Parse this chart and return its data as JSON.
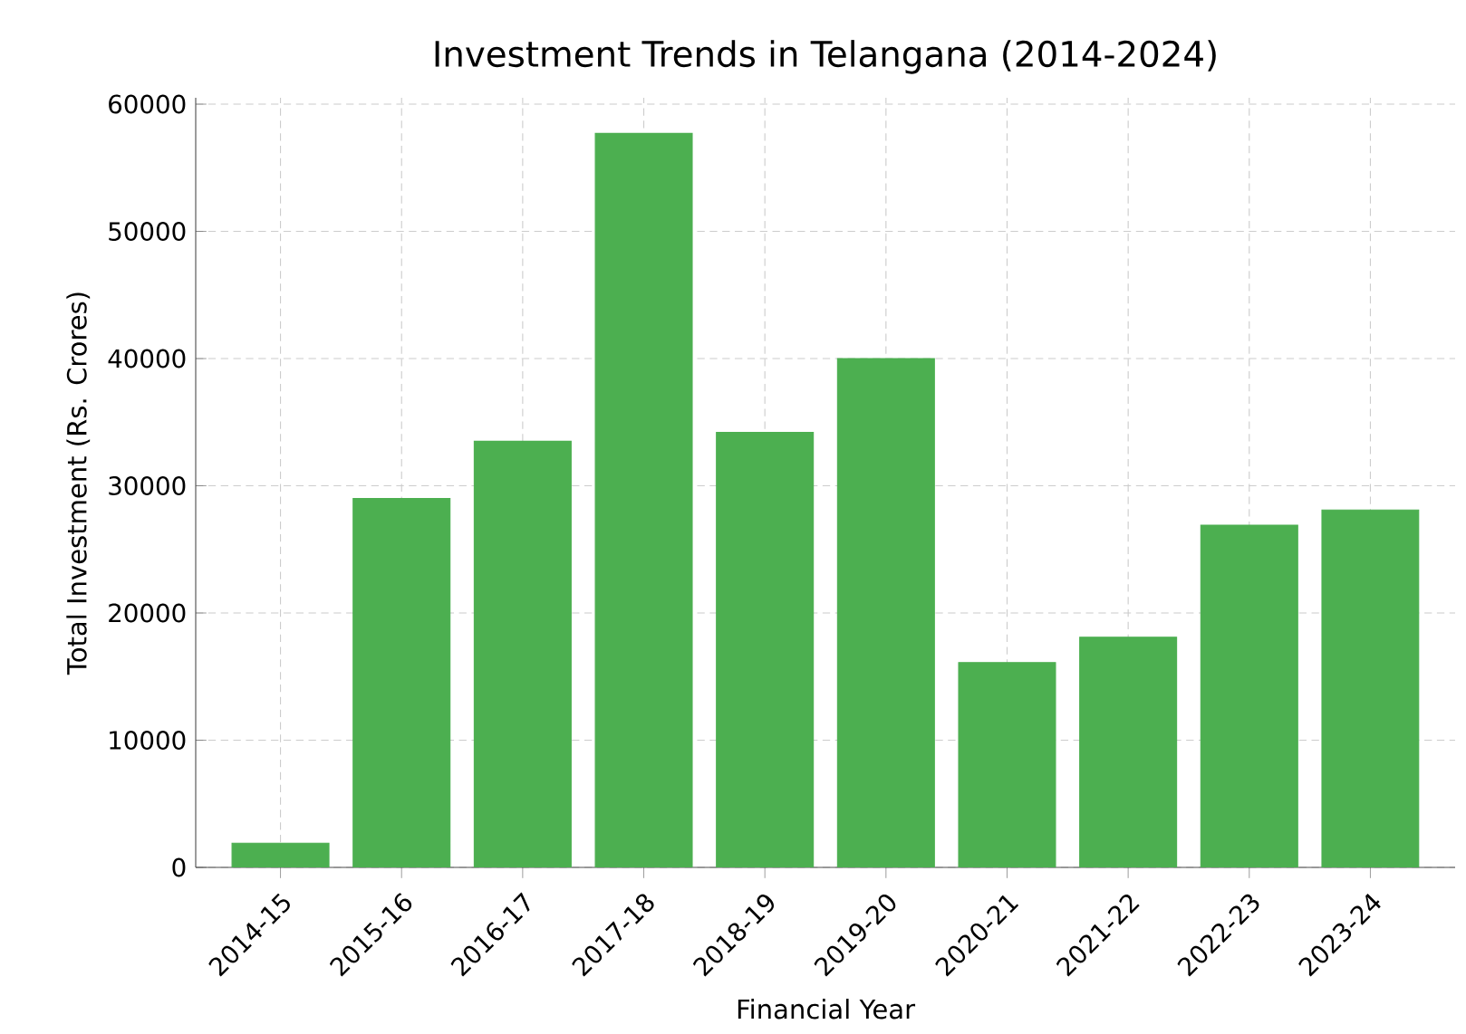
{
  "chart_data": {
    "type": "bar",
    "title": "Investment Trends in Telangana (2014-2024)",
    "xlabel": "Financial Year",
    "ylabel": "Total Investment (Rs. Crores)",
    "categories": [
      "2014-15",
      "2015-16",
      "2016-17",
      "2017-18",
      "2018-19",
      "2019-20",
      "2020-21",
      "2021-22",
      "2022-23",
      "2023-24"
    ],
    "values": [
      1900,
      29000,
      33500,
      57700,
      34200,
      40000,
      16100,
      18100,
      26900,
      28100
    ],
    "color": "#4caf50",
    "ylim": [
      0,
      60500
    ],
    "yticks": [
      0,
      10000,
      20000,
      30000,
      40000,
      50000,
      60000
    ],
    "grid": true
  }
}
